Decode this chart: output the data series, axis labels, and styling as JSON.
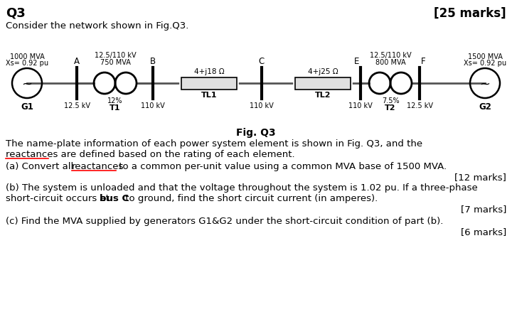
{
  "title_left": "Q3",
  "title_right": "[25 marks]",
  "subtitle": "Consider the network shown in Fig.Q3.",
  "fig_caption": "Fig. Q3",
  "para1_line1": "The name-plate information of each power system element is shown in Fig. Q3, and the",
  "para1_line2": "reactances are defined based on the rating of each element.",
  "para2a_full": "(a) Convert all reactances to a common per-unit value using a common MVA base of 1500 MVA.",
  "para2a_marks": "[12 marks]",
  "para2b_line1": "(b) The system is unloaded and that the voltage throughout the system is 1.02 pu. If a three-phase",
  "para2b_line2a": "short-circuit occurs at ",
  "para2b_line2b": "bus C",
  "para2b_line2c": " to ground, find the short circuit current (in amperes).",
  "para2b_marks": "[7 marks]",
  "para2c": "(c) Find the MVA supplied by generators G1&G2 under the short-circuit condition of part (b).",
  "para2c_marks": "[6 marks]",
  "bg_color": "#ffffff"
}
